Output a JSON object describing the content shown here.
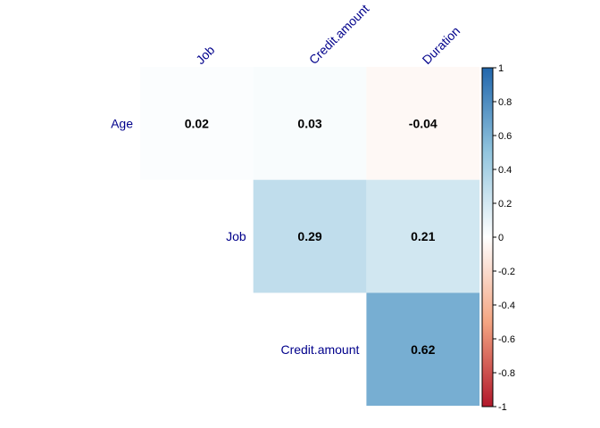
{
  "chart_data": {
    "type": "heatmap",
    "variant": "correlation-upper-triangle",
    "rows": [
      "Age",
      "Job",
      "Credit.amount"
    ],
    "columns": [
      "Job",
      "Credit.amount",
      "Duration"
    ],
    "cells": [
      {
        "row": "Age",
        "col": "Job",
        "value": 0.02,
        "label": "0.02"
      },
      {
        "row": "Age",
        "col": "Credit.amount",
        "value": 0.03,
        "label": "0.03"
      },
      {
        "row": "Age",
        "col": "Duration",
        "value": -0.04,
        "label": "-0.04"
      },
      {
        "row": "Job",
        "col": "Credit.amount",
        "value": 0.29,
        "label": "0.29"
      },
      {
        "row": "Job",
        "col": "Duration",
        "value": 0.21,
        "label": "0.21"
      },
      {
        "row": "Credit.amount",
        "col": "Duration",
        "value": 0.62,
        "label": "0.62"
      }
    ],
    "colorbar": {
      "range": [
        -1,
        1
      ],
      "ticks": [
        "1",
        "0.8",
        "0.6",
        "0.4",
        "0.2",
        "0",
        "-0.2",
        "-0.4",
        "-0.6",
        "-0.8",
        "-1"
      ],
      "colors": {
        "negative": "#b2182b",
        "neutral": "#ffffff",
        "positive": "#2166ac"
      },
      "placement": "right"
    },
    "label_color": "#00008b",
    "title": "",
    "xlabel": "",
    "ylabel": ""
  }
}
